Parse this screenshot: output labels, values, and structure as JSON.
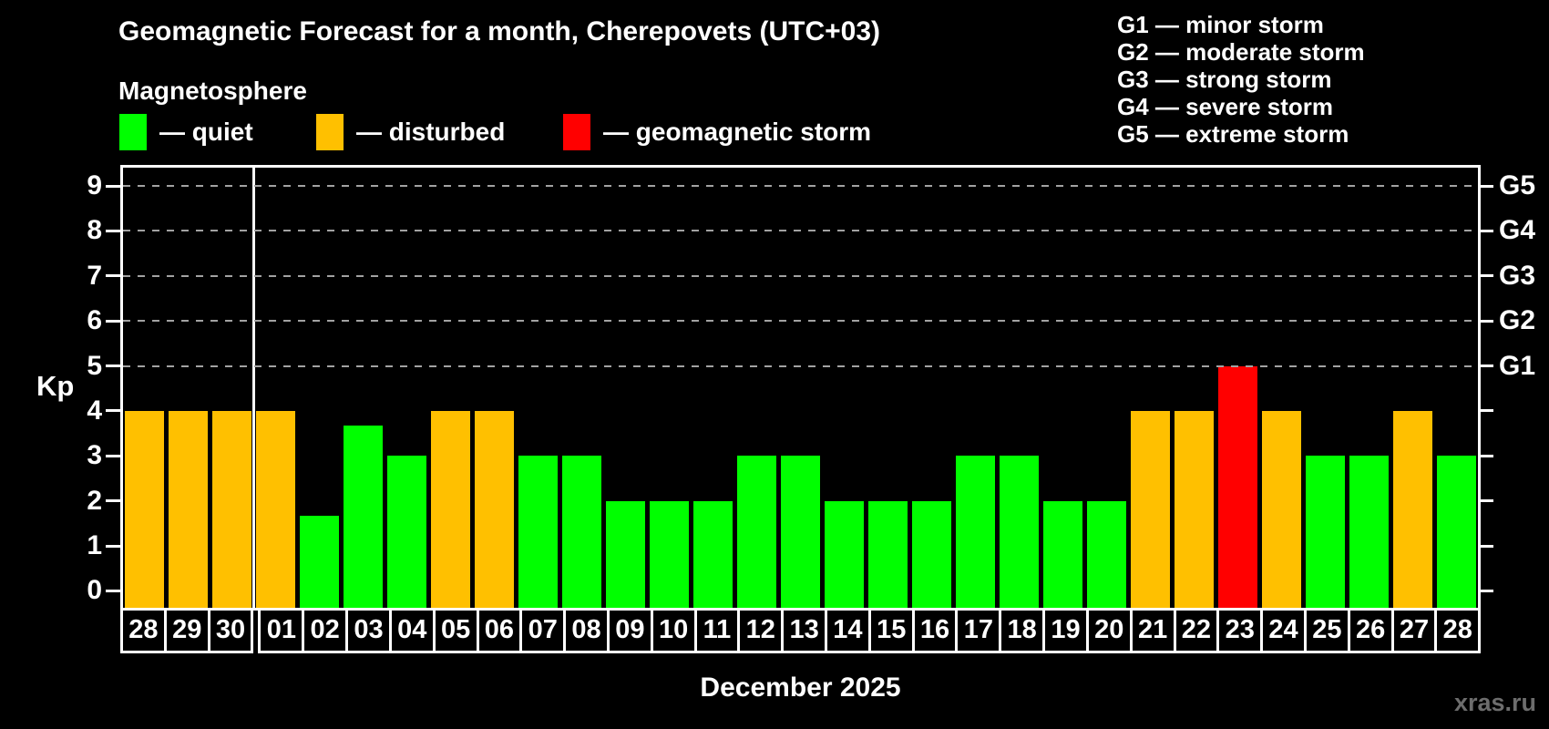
{
  "title": "Geomagnetic Forecast for a month, Cherepovets (UTC+03)",
  "subtitle": "Magnetosphere",
  "legend": {
    "items": [
      {
        "key": "quiet",
        "label": "— quiet",
        "color": "#00ff00"
      },
      {
        "key": "disturbed",
        "label": "— disturbed",
        "color": "#ffc000"
      },
      {
        "key": "storm",
        "label": "— geomagnetic storm",
        "color": "#ff0000"
      }
    ]
  },
  "storm_scale_legend": [
    "G1 — minor storm",
    "G2 — moderate storm",
    "G3 — strong storm",
    "G4 — severe storm",
    "G5 — extreme storm"
  ],
  "watermark": "xras.ru",
  "chart_data": {
    "type": "bar",
    "title": "Geomagnetic Forecast for a month, Cherepovets (UTC+03)",
    "ylabel": "Kp",
    "month_label": "December 2025",
    "categories": [
      "28",
      "29",
      "30",
      "01",
      "02",
      "03",
      "04",
      "05",
      "06",
      "07",
      "08",
      "09",
      "10",
      "11",
      "12",
      "13",
      "14",
      "15",
      "16",
      "17",
      "18",
      "19",
      "20",
      "21",
      "22",
      "23",
      "24",
      "25",
      "26",
      "27",
      "28"
    ],
    "values": [
      4,
      4,
      4,
      4,
      1.67,
      3.67,
      3,
      4,
      4,
      3,
      3,
      2,
      2,
      2,
      3,
      3,
      2,
      2,
      2,
      3,
      3,
      2,
      2,
      4,
      4,
      5,
      4,
      3,
      3,
      4,
      3
    ],
    "statuses": [
      "disturbed",
      "disturbed",
      "disturbed",
      "disturbed",
      "quiet",
      "quiet",
      "quiet",
      "disturbed",
      "disturbed",
      "quiet",
      "quiet",
      "quiet",
      "quiet",
      "quiet",
      "quiet",
      "quiet",
      "quiet",
      "quiet",
      "quiet",
      "quiet",
      "quiet",
      "quiet",
      "quiet",
      "disturbed",
      "disturbed",
      "storm",
      "disturbed",
      "quiet",
      "quiet",
      "disturbed",
      "quiet"
    ],
    "colors": {
      "quiet": "#00ff00",
      "disturbed": "#ffc000",
      "storm": "#ff0000"
    },
    "y_ticks": [
      0,
      1,
      2,
      3,
      4,
      5,
      6,
      7,
      8,
      9
    ],
    "gridlines_at": [
      5,
      6,
      7,
      8,
      9
    ],
    "g_levels": [
      {
        "kp": 5,
        "label": "G1"
      },
      {
        "kp": 6,
        "label": "G2"
      },
      {
        "kp": 7,
        "label": "G3"
      },
      {
        "kp": 8,
        "label": "G4"
      },
      {
        "kp": 9,
        "label": "G5"
      }
    ],
    "ylim": [
      0,
      9
    ],
    "ylim_display": [
      -0.375,
      9.405
    ],
    "month_separator_after_index": 2,
    "grid": "dashed horizontal lines at Kp 5–9 only",
    "legend_position": "top-left"
  }
}
